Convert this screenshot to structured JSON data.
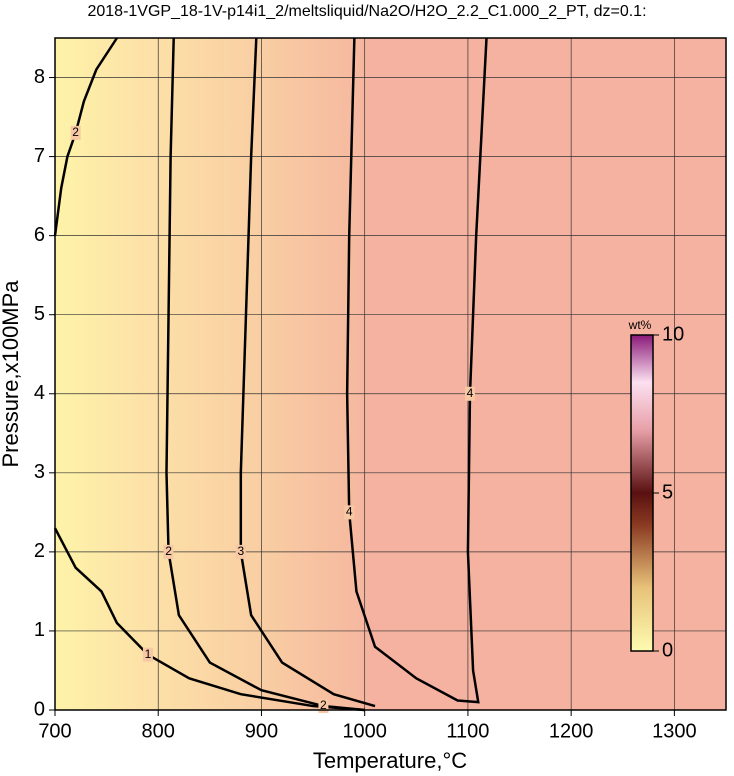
{
  "chart_data": {
    "type": "contour",
    "title": "2018-1VGP_18-1V-p14i1_2/meltsliquid/Na2O/H2O_2.2_C1.000_2_PT, dz=0.1:",
    "x_label": "Temperature,°C",
    "y_label": "Pressure,x100MPa",
    "xlim": [
      700,
      1350
    ],
    "ylim": [
      0,
      8.5
    ],
    "xticks": [
      700,
      800,
      900,
      1000,
      1100,
      1200,
      1300
    ],
    "yticks": [
      0,
      1,
      2,
      3,
      4,
      5,
      6,
      7,
      8
    ],
    "grid": true,
    "line_color": "#000000",
    "contours": [
      {
        "level": 1,
        "x": [
          700,
          720,
          745,
          760,
          790,
          830,
          880,
          950,
          1000
        ],
        "y": [
          2.3,
          1.8,
          1.5,
          1.1,
          0.7,
          0.4,
          0.2,
          0.05,
          0
        ]
      },
      {
        "level": 2,
        "x": [
          700,
          706,
          712,
          720,
          728,
          740,
          760
        ],
        "y": [
          6.0,
          6.6,
          7.0,
          7.3,
          7.7,
          8.1,
          8.5
        ]
      },
      {
        "level": 2,
        "x": [
          815,
          812,
          810,
          808,
          810,
          820,
          850,
          900,
          960,
          1000
        ],
        "y": [
          8.5,
          7.0,
          5.0,
          3.0,
          2.0,
          1.2,
          0.6,
          0.25,
          0.05,
          0
        ]
      },
      {
        "level": 3,
        "x": [
          895,
          890,
          885,
          880,
          880,
          890,
          920,
          970,
          1010
        ],
        "y": [
          8.5,
          7.0,
          5.0,
          3.0,
          2.0,
          1.2,
          0.6,
          0.2,
          0.05
        ]
      },
      {
        "level": 4,
        "x": [
          990,
          985,
          983,
          985,
          992,
          1010,
          1050,
          1090,
          1110,
          1105,
          1100,
          1102,
          1108,
          1118
        ],
        "y": [
          8.5,
          6.0,
          4.0,
          2.5,
          1.5,
          0.8,
          0.4,
          0.12,
          0.1,
          0.5,
          2.0,
          4.0,
          6.0,
          8.5
        ]
      }
    ],
    "colorbar": {
      "label": "wt%",
      "lim": [
        0,
        10
      ],
      "ticks": [
        0,
        5,
        10
      ]
    }
  }
}
